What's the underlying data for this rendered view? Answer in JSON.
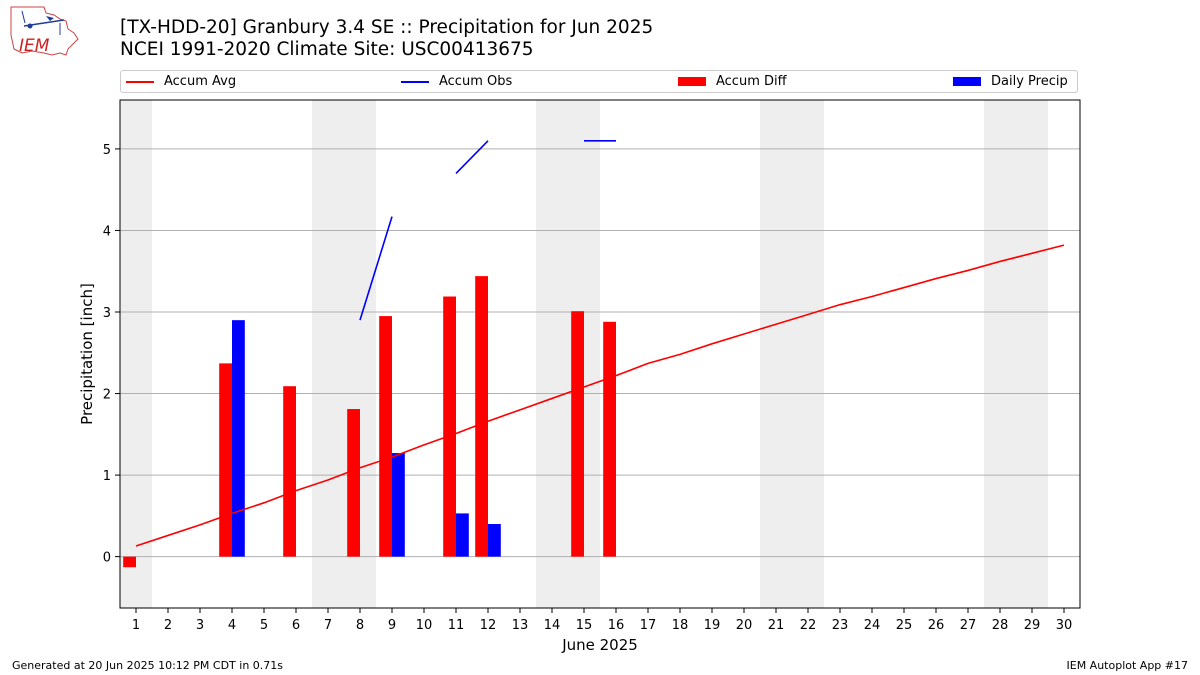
{
  "logo": {
    "text": "IEM"
  },
  "title_line1": "[TX-HDD-20] Granbury 3.4 SE :: Precipitation for Jun 2025",
  "title_line2": "NCEI 1991-2020 Climate Site: USC00413675",
  "footer_left": "Generated at 20 Jun 2025 10:12 PM CDT in 0.71s",
  "footer_right": "IEM Autoplot App #17",
  "colors": {
    "avg": "#ff0000",
    "obs": "#0000ff",
    "diff": "#ff0000",
    "daily": "#0000ff",
    "weekend": "#eeeeee",
    "grid": "#b0b0b0"
  },
  "chart_data": {
    "type": "bar",
    "xlabel": "June 2025",
    "ylabel": "Precipitation [inch]",
    "xlim": [
      0.5,
      30.5
    ],
    "ylim": [
      -0.63,
      5.6
    ],
    "yticks": [
      0,
      1,
      2,
      3,
      4,
      5
    ],
    "x": [
      1,
      2,
      3,
      4,
      5,
      6,
      7,
      8,
      9,
      10,
      11,
      12,
      13,
      14,
      15,
      16,
      17,
      18,
      19,
      20,
      21,
      22,
      23,
      24,
      25,
      26,
      27,
      28,
      29,
      30
    ],
    "weekend_days": [
      1,
      7,
      8,
      14,
      15,
      21,
      22,
      28,
      29
    ],
    "grid": "y",
    "legend_position": "top",
    "series": [
      {
        "name": "Accum Avg",
        "kind": "line",
        "values": [
          0.13,
          0.26,
          0.39,
          0.53,
          0.66,
          0.81,
          0.94,
          1.09,
          1.22,
          1.37,
          1.51,
          1.66,
          1.8,
          1.94,
          2.08,
          2.22,
          2.37,
          2.48,
          2.61,
          2.73,
          2.85,
          2.97,
          3.09,
          3.19,
          3.3,
          3.41,
          3.51,
          3.62,
          3.72,
          3.82
        ]
      },
      {
        "name": "Accum Obs",
        "kind": "line",
        "values": [
          null,
          null,
          null,
          null,
          null,
          null,
          null,
          2.9,
          4.17,
          null,
          4.7,
          5.1,
          null,
          null,
          5.1,
          5.1,
          null,
          null,
          null,
          null,
          null,
          null,
          null,
          null,
          null,
          null,
          null,
          null,
          null,
          null
        ]
      },
      {
        "name": "Accum Diff",
        "kind": "bar",
        "values": [
          -0.13,
          null,
          null,
          2.37,
          null,
          2.09,
          null,
          1.81,
          2.95,
          null,
          3.19,
          3.44,
          null,
          null,
          3.01,
          2.88,
          null,
          null,
          null,
          null,
          null,
          null,
          null,
          null,
          null,
          null,
          null,
          null,
          null,
          null
        ]
      },
      {
        "name": "Daily Precip",
        "kind": "bar",
        "values": [
          null,
          null,
          null,
          2.9,
          null,
          null,
          null,
          null,
          1.27,
          null,
          0.53,
          0.4,
          null,
          null,
          null,
          null,
          null,
          null,
          null,
          null,
          null,
          null,
          null,
          null,
          null,
          null,
          null,
          null,
          null,
          null
        ]
      }
    ]
  }
}
